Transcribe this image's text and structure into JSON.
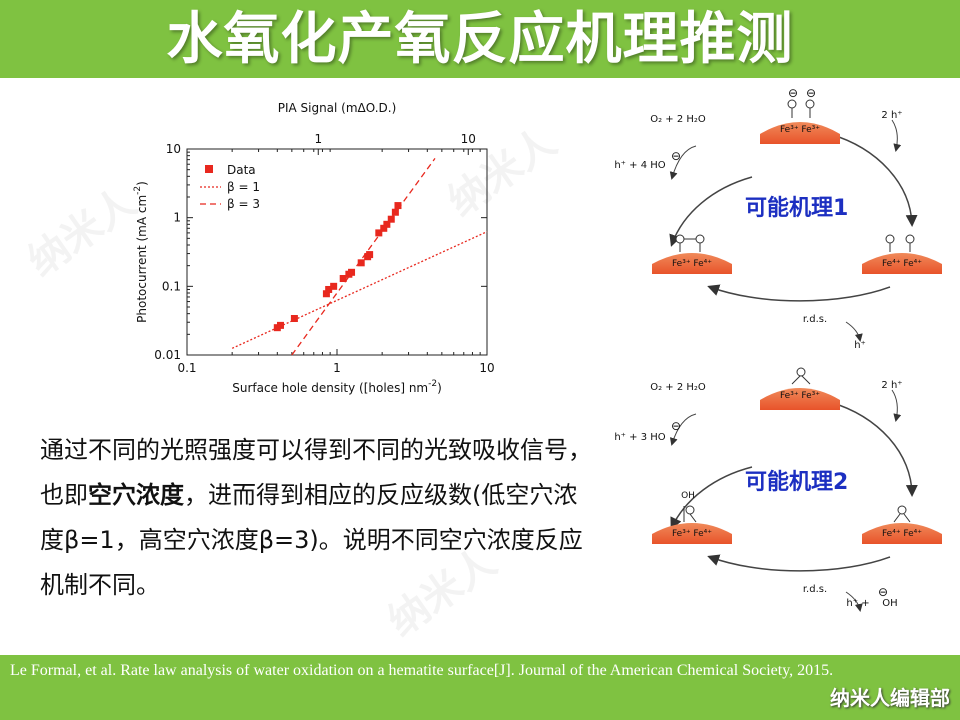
{
  "header": {
    "title": "水氧化产氧反应机理推测"
  },
  "watermarks": [
    "纳米人",
    "纳米人",
    "纳米人"
  ],
  "chart_data": {
    "type": "scatter",
    "xlabel": "Surface hole density ([holes] nm",
    "xlabel_sup": "-2",
    "xlabel_end": ")",
    "x2label": "PIA Signal (mΔO.D.)",
    "ylabel": "Photocurrent (mA cm",
    "ylabel_sup": "-2",
    "ylabel_end": ")",
    "x_scale": "log",
    "y_scale": "log",
    "xlim": [
      0.1,
      10
    ],
    "ylim": [
      0.01,
      10
    ],
    "x_ticks": [
      "0.1",
      "1",
      "10"
    ],
    "y_ticks": [
      "0.01",
      "0.1",
      "1",
      "10"
    ],
    "x2_ticks": [
      "1",
      "10"
    ],
    "legend": {
      "position": "top-left",
      "entries": [
        {
          "label": "Data",
          "style": "square"
        },
        {
          "label": "β = 1",
          "style": "dotted"
        },
        {
          "label": "β = 3",
          "style": "dashed"
        }
      ]
    },
    "series_color": "#e8281e",
    "data": {
      "name": "Data",
      "x": [
        0.4,
        0.42,
        0.52,
        0.85,
        0.88,
        0.95,
        1.1,
        1.2,
        1.25,
        1.45,
        1.6,
        1.65,
        1.9,
        2.05,
        2.15,
        2.3,
        2.45,
        2.55
      ],
      "y": [
        0.025,
        0.027,
        0.034,
        0.078,
        0.09,
        0.1,
        0.13,
        0.15,
        0.16,
        0.22,
        0.27,
        0.29,
        0.6,
        0.7,
        0.8,
        0.95,
        1.2,
        1.5
      ]
    },
    "fit_beta1": {
      "name": "β = 1",
      "x": [
        0.2,
        10
      ],
      "y": [
        0.0125,
        0.625
      ]
    },
    "fit_beta3": {
      "name": "β = 3",
      "x": [
        0.5,
        4.5
      ],
      "y": [
        0.01,
        7.29
      ]
    }
  },
  "mechanism1": {
    "label": "可能机理1",
    "top_left_text": "O₂ + 2 H₂O",
    "left_text": "h⁺ + 4 HO",
    "right_top_text": "2 h⁺",
    "bottom_text": "r.d.s.",
    "bottom_h": "h⁺",
    "top_slab": "Fe³⁺ Fe³⁺",
    "left_slab": "Fe³⁺ Fe⁴⁺",
    "right_slab": "Fe⁴⁺ Fe⁴⁺",
    "minus": "⊖"
  },
  "mechanism2": {
    "label": "可能机理2",
    "top_left_text": "O₂ + 2 H₂O",
    "left_text": "h⁺ + 3 HO",
    "right_top_text": "2 h⁺",
    "bottom_text": "r.d.s.",
    "bottom_h": "h⁺ +",
    "bottom_oh": "OH",
    "oh_label": "OH",
    "top_slab": "Fe³⁺ Fe³⁺",
    "left_slab": "Fe³⁺ Fe⁴⁺",
    "right_slab": "Fe⁴⁺ Fe⁴⁺",
    "minus": "⊖"
  },
  "description": {
    "part1": "通过不同的光照强度可以得到不同的光致吸收信号，也即",
    "bold": "空穴浓度",
    "part2": "，进而得到相应的反应级数(低空穴浓度β=1，高空穴浓度β=3)。说明不同空穴浓度反应机制不同。"
  },
  "footer": {
    "citation": "Le Formal, et al. Rate law analysis of water oxidation on a hematite surface[J]. Journal of the American Chemical Society, 2015.",
    "brand": "纳米人编辑部"
  },
  "colors": {
    "green": "#7fc241",
    "red": "#e8281e",
    "blue_label": "#1c2fc1",
    "slab": "#ef6a3e"
  }
}
